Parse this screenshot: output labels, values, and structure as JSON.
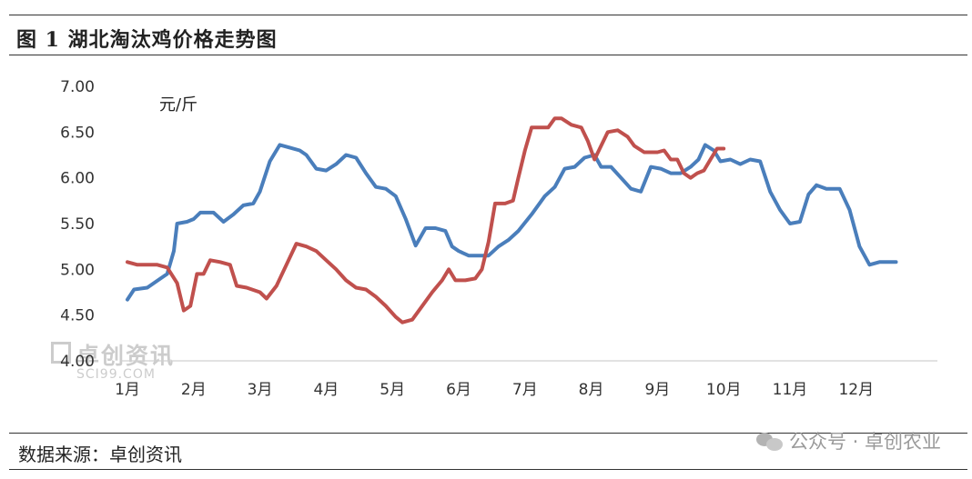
{
  "figure": {
    "title": "图 1  湖北淘汰鸡价格走势图",
    "source": "数据来源：卓创资讯",
    "watermark_text": "公众号 · 卓创农业",
    "watermark_icon": "wechat-icon",
    "logo_text": "卓创资讯",
    "logo_subtext": "SCI99.COM"
  },
  "chart_data": {
    "type": "line",
    "title": "",
    "xlabel": "",
    "ylabel": "元/斤",
    "ylim": [
      4.0,
      7.0
    ],
    "yticks": [
      "4.00",
      "4.50",
      "5.00",
      "5.50",
      "6.00",
      "6.50",
      "7.00"
    ],
    "xticks": [
      "1月",
      "2月",
      "3月",
      "4月",
      "5月",
      "6月",
      "7月",
      "8月",
      "9月",
      "10月",
      "11月",
      "12月"
    ],
    "grid": false,
    "legend": "none",
    "series": [
      {
        "color": "#4a7ebb",
        "points": [
          [
            1.0,
            4.67
          ],
          [
            1.1,
            4.78
          ],
          [
            1.3,
            4.8
          ],
          [
            1.5,
            4.9
          ],
          [
            1.6,
            4.95
          ],
          [
            1.7,
            5.2
          ],
          [
            1.75,
            5.5
          ],
          [
            1.9,
            5.52
          ],
          [
            2.0,
            5.55
          ],
          [
            2.1,
            5.62
          ],
          [
            2.3,
            5.62
          ],
          [
            2.45,
            5.52
          ],
          [
            2.6,
            5.6
          ],
          [
            2.75,
            5.7
          ],
          [
            2.9,
            5.72
          ],
          [
            3.0,
            5.85
          ],
          [
            3.15,
            6.18
          ],
          [
            3.3,
            6.36
          ],
          [
            3.45,
            6.33
          ],
          [
            3.6,
            6.3
          ],
          [
            3.7,
            6.25
          ],
          [
            3.85,
            6.1
          ],
          [
            4.0,
            6.08
          ],
          [
            4.15,
            6.15
          ],
          [
            4.3,
            6.25
          ],
          [
            4.45,
            6.22
          ],
          [
            4.6,
            6.05
          ],
          [
            4.75,
            5.9
          ],
          [
            4.9,
            5.88
          ],
          [
            5.05,
            5.8
          ],
          [
            5.2,
            5.55
          ],
          [
            5.35,
            5.26
          ],
          [
            5.5,
            5.45
          ],
          [
            5.65,
            5.45
          ],
          [
            5.8,
            5.42
          ],
          [
            5.9,
            5.25
          ],
          [
            6.0,
            5.2
          ],
          [
            6.15,
            5.15
          ],
          [
            6.3,
            5.15
          ],
          [
            6.45,
            5.15
          ],
          [
            6.6,
            5.25
          ],
          [
            6.75,
            5.32
          ],
          [
            6.9,
            5.42
          ],
          [
            7.1,
            5.6
          ],
          [
            7.3,
            5.8
          ],
          [
            7.45,
            5.9
          ],
          [
            7.6,
            6.1
          ],
          [
            7.75,
            6.12
          ],
          [
            7.9,
            6.22
          ],
          [
            8.05,
            6.25
          ],
          [
            8.15,
            6.12
          ],
          [
            8.3,
            6.12
          ],
          [
            8.45,
            6.0
          ],
          [
            8.6,
            5.88
          ],
          [
            8.75,
            5.85
          ],
          [
            8.9,
            6.12
          ],
          [
            9.05,
            6.1
          ],
          [
            9.2,
            6.05
          ],
          [
            9.35,
            6.05
          ],
          [
            9.5,
            6.12
          ],
          [
            9.62,
            6.2
          ],
          [
            9.72,
            6.36
          ],
          [
            9.85,
            6.3
          ],
          [
            9.95,
            6.18
          ],
          [
            10.1,
            6.2
          ],
          [
            10.25,
            6.15
          ],
          [
            10.4,
            6.2
          ],
          [
            10.55,
            6.18
          ],
          [
            10.7,
            5.85
          ],
          [
            10.85,
            5.65
          ],
          [
            11.0,
            5.5
          ],
          [
            11.15,
            5.52
          ],
          [
            11.28,
            5.82
          ],
          [
            11.4,
            5.92
          ],
          [
            11.55,
            5.88
          ],
          [
            11.75,
            5.88
          ],
          [
            11.9,
            5.65
          ],
          [
            12.05,
            5.25
          ],
          [
            12.2,
            5.05
          ],
          [
            12.35,
            5.08
          ],
          [
            12.5,
            5.08
          ],
          [
            12.6,
            5.08
          ]
        ]
      },
      {
        "color": "#c0504d",
        "points": [
          [
            1.0,
            5.08
          ],
          [
            1.15,
            5.05
          ],
          [
            1.3,
            5.05
          ],
          [
            1.45,
            5.05
          ],
          [
            1.6,
            5.02
          ],
          [
            1.75,
            4.85
          ],
          [
            1.85,
            4.55
          ],
          [
            1.95,
            4.6
          ],
          [
            2.05,
            4.95
          ],
          [
            2.15,
            4.95
          ],
          [
            2.25,
            5.1
          ],
          [
            2.4,
            5.08
          ],
          [
            2.55,
            5.05
          ],
          [
            2.65,
            4.82
          ],
          [
            2.8,
            4.8
          ],
          [
            3.0,
            4.75
          ],
          [
            3.1,
            4.68
          ],
          [
            3.25,
            4.82
          ],
          [
            3.4,
            5.05
          ],
          [
            3.55,
            5.28
          ],
          [
            3.7,
            5.25
          ],
          [
            3.85,
            5.2
          ],
          [
            4.0,
            5.1
          ],
          [
            4.15,
            5.0
          ],
          [
            4.3,
            4.88
          ],
          [
            4.45,
            4.8
          ],
          [
            4.6,
            4.78
          ],
          [
            4.75,
            4.7
          ],
          [
            4.9,
            4.6
          ],
          [
            5.05,
            4.48
          ],
          [
            5.15,
            4.42
          ],
          [
            5.3,
            4.45
          ],
          [
            5.45,
            4.6
          ],
          [
            5.6,
            4.75
          ],
          [
            5.75,
            4.88
          ],
          [
            5.85,
            5.0
          ],
          [
            5.95,
            4.88
          ],
          [
            6.1,
            4.88
          ],
          [
            6.25,
            4.9
          ],
          [
            6.35,
            5.0
          ],
          [
            6.45,
            5.3
          ],
          [
            6.55,
            5.72
          ],
          [
            6.7,
            5.72
          ],
          [
            6.82,
            5.75
          ],
          [
            6.9,
            6.0
          ],
          [
            7.0,
            6.3
          ],
          [
            7.1,
            6.55
          ],
          [
            7.25,
            6.55
          ],
          [
            7.35,
            6.55
          ],
          [
            7.45,
            6.65
          ],
          [
            7.55,
            6.65
          ],
          [
            7.7,
            6.58
          ],
          [
            7.85,
            6.55
          ],
          [
            7.95,
            6.4
          ],
          [
            8.05,
            6.2
          ],
          [
            8.15,
            6.35
          ],
          [
            8.25,
            6.5
          ],
          [
            8.4,
            6.52
          ],
          [
            8.55,
            6.45
          ],
          [
            8.65,
            6.35
          ],
          [
            8.8,
            6.28
          ],
          [
            9.0,
            6.28
          ],
          [
            9.1,
            6.3
          ],
          [
            9.2,
            6.2
          ],
          [
            9.3,
            6.2
          ],
          [
            9.4,
            6.05
          ],
          [
            9.5,
            6.0
          ],
          [
            9.6,
            6.05
          ],
          [
            9.7,
            6.08
          ],
          [
            9.8,
            6.2
          ],
          [
            9.9,
            6.32
          ],
          [
            10.0,
            6.32
          ]
        ]
      }
    ]
  }
}
